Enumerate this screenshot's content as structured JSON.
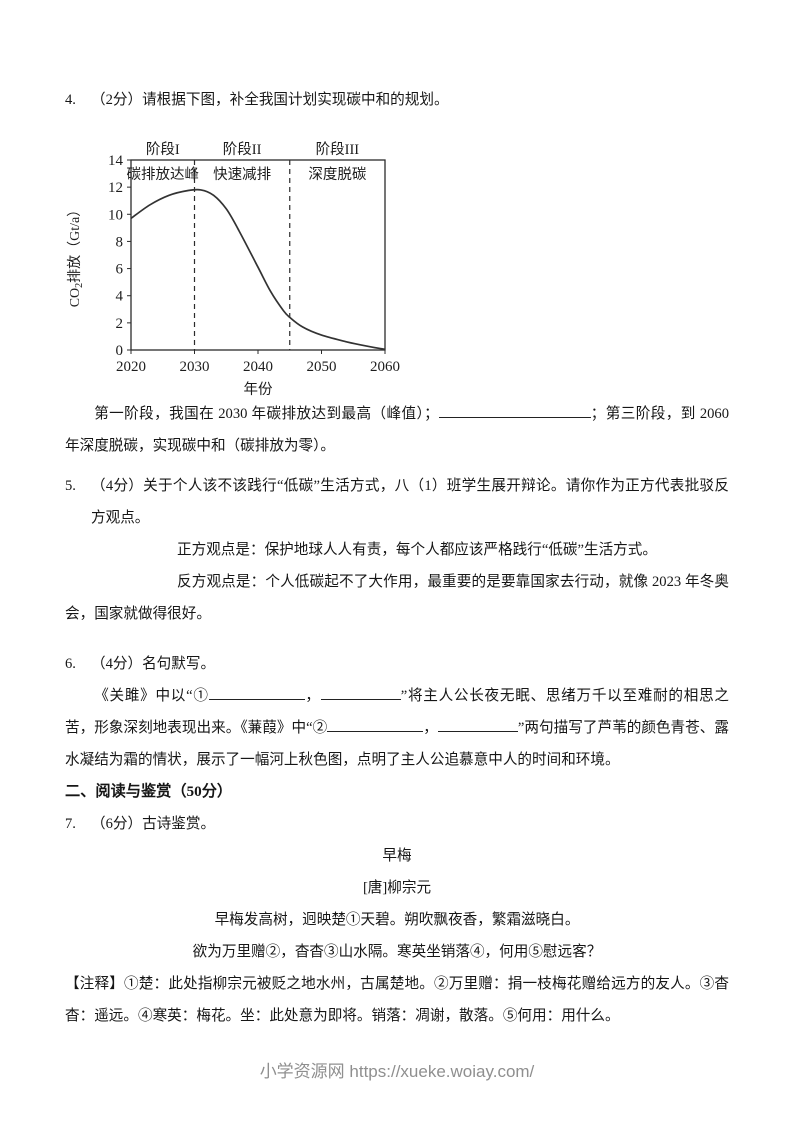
{
  "q4": {
    "number": "4.",
    "text": "（2分）请根据下图，补全我国计划实现碳中和的规划。"
  },
  "chart_data": {
    "type": "line",
    "title": "",
    "xlabel": "年份",
    "ylabel": "CO2排放（Gt/a）",
    "ylabel_parts": {
      "pre": "CO",
      "sub": "2",
      "post": "排放（Gt/a）"
    },
    "xlim": [
      2020,
      2060
    ],
    "ylim": [
      0,
      14
    ],
    "x_ticks": [
      "2020",
      "2030",
      "2040",
      "2050",
      "2060"
    ],
    "y_ticks": [
      "0",
      "2",
      "4",
      "6",
      "8",
      "10",
      "12",
      "14"
    ],
    "grid": false,
    "line_color": "#333333",
    "axis_color": "#2b2b2b",
    "phase_boundaries": [
      2030,
      2045
    ],
    "phases": [
      {
        "label": "阶段I",
        "name": "碳排放达峰",
        "start": 2020,
        "end": 2030
      },
      {
        "label": "阶段II",
        "name": "快速减排",
        "start": 2030,
        "end": 2045
      },
      {
        "label": "阶段III",
        "name": "深度脱碳",
        "start": 2045,
        "end": 2060
      }
    ],
    "series": [
      {
        "name": "CO2排放",
        "points": [
          [
            2020,
            9.7
          ],
          [
            2023,
            10.7
          ],
          [
            2026,
            11.4
          ],
          [
            2029,
            11.75
          ],
          [
            2031,
            11.8
          ],
          [
            2033,
            11.4
          ],
          [
            2035,
            10.4
          ],
          [
            2037,
            8.8
          ],
          [
            2040,
            6.1
          ],
          [
            2042,
            4.3
          ],
          [
            2044,
            2.9
          ],
          [
            2045,
            2.4
          ],
          [
            2047,
            1.7
          ],
          [
            2050,
            1.1
          ],
          [
            2054,
            0.6
          ],
          [
            2057,
            0.3
          ],
          [
            2060,
            0.05
          ]
        ]
      }
    ]
  },
  "fill_para": {
    "part1": "第一阶段，我国在 2030 年碳排放达到最高（峰值）；",
    "part2": "；第三阶段，到 2060 年深度脱碳，实现碳中和（碳排放为零）。"
  },
  "q5": {
    "number": "5.",
    "text": "（4分）关于个人该不该践行“低碳”生活方式，八（1）班学生展开辩论。请你作为正方代表批驳反方观点。",
    "pro": "正方观点是：保护地球人人有责，每个人都应该严格践行“低碳”生活方式。",
    "con": "反方观点是：个人低碳起不了大作用，最重要的是要靠国家去行动，就像 2023 年冬奥会，国家就做得很好。"
  },
  "q6": {
    "number": "6.",
    "text": "（4分）名句默写。",
    "para": {
      "part1": "《关雎》中以“①",
      "comma1": "，",
      "part2": "”将主人公长夜无眠、思绪万千以至难耐的相思之苦，形象深刻地表现出来。《蒹葭》中“②",
      "comma2": "，",
      "part3": "”两句描写了芦苇的颜色青苍、露水凝结为霜的情状，展示了一幅河上秋色图，点明了主人公追慕意中人的时间和环境。"
    }
  },
  "section2": {
    "title": "二、阅读与鉴赏（50分）"
  },
  "q7": {
    "number": "7.",
    "text": "（6分）古诗鉴赏。"
  },
  "poem": {
    "title": "早梅",
    "author": "[唐]柳宗元",
    "line1": "早梅发高树，迥映楚①天碧。朔吹飘夜香，繁霜滋晓白。",
    "line2": "欲为万里赠②，杳杳③山水隔。寒英坐销落④，何用⑤慰远客？"
  },
  "notes": {
    "text": "【注释】①楚：此处指柳宗元被贬之地水州，古属楚地。②万里赠：捐一枝梅花赠给远方的友人。③杳杳：遥远。④寒英：梅花。坐：此处意为即将。销落：凋谢，散落。⑤何用：用什么。"
  },
  "footer": {
    "text": "小学资源网 https://xueke.woiay.com/"
  }
}
